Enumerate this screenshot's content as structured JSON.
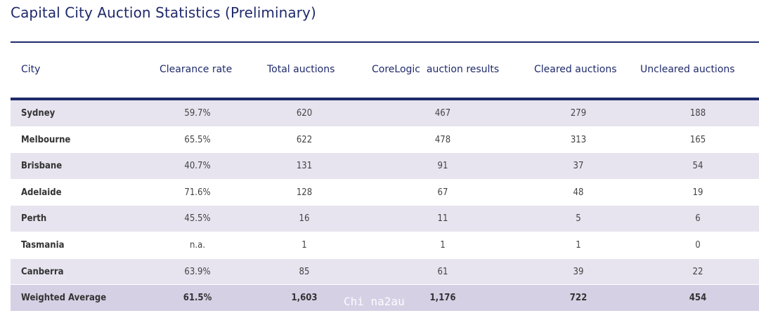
{
  "title": "Capital City Auction Statistics (Preliminary)",
  "columns": [
    "City",
    "Clearance rate",
    "Total auctions",
    "CoreLogic  auction results",
    "Cleared auctions",
    "Uncleared auctions"
  ],
  "rows": [
    {
      "city": "Sydney",
      "clearance_rate": "59.7%",
      "total_auctions": "620",
      "corelogic_results": "467",
      "cleared": "279",
      "uncleared": "188"
    },
    {
      "city": "Melbourne",
      "clearance_rate": "65.5%",
      "total_auctions": "622",
      "corelogic_results": "478",
      "cleared": "313",
      "uncleared": "165"
    },
    {
      "city": "Brisbane",
      "clearance_rate": "40.7%",
      "total_auctions": "131",
      "corelogic_results": "91",
      "cleared": "37",
      "uncleared": "54"
    },
    {
      "city": "Adelaide",
      "clearance_rate": "71.6%",
      "total_auctions": "128",
      "corelogic_results": "67",
      "cleared": "48",
      "uncleared": "19"
    },
    {
      "city": "Perth",
      "clearance_rate": "45.5%",
      "total_auctions": "16",
      "corelogic_results": "11",
      "cleared": "5",
      "uncleared": "6"
    },
    {
      "city": "Tasmania",
      "clearance_rate": "n.a.",
      "total_auctions": "1",
      "corelogic_results": "1",
      "cleared": "1",
      "uncleared": "0"
    },
    {
      "city": "Canberra",
      "clearance_rate": "63.9%",
      "total_auctions": "85",
      "corelogic_results": "61",
      "cleared": "39",
      "uncleared": "22"
    },
    {
      "city": "Weighted Average",
      "clearance_rate": "61.5%",
      "total_auctions": "1,603",
      "corelogic_results": "1,176",
      "cleared": "722",
      "uncleared": "454"
    }
  ],
  "watermark": "Chi na2au",
  "colors": {
    "heading": "#1f2a6b",
    "row_shade": "#e7e4ef",
    "row_total": "#d6d0e5"
  }
}
